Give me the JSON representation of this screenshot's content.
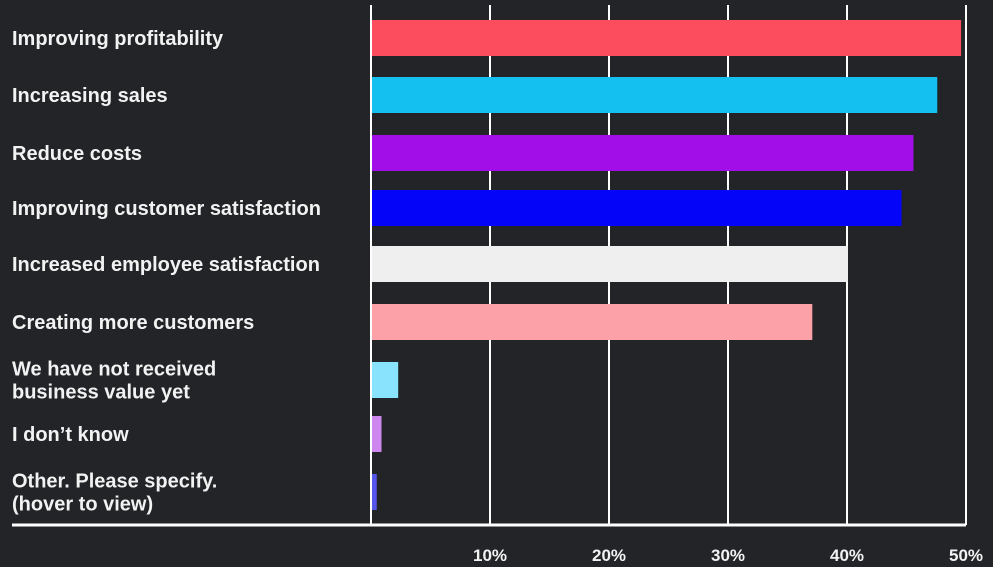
{
  "chart_data": {
    "type": "bar",
    "orientation": "horizontal",
    "title": "",
    "xlabel": "",
    "ylabel": "",
    "categories": [
      [
        "Improving profitability"
      ],
      [
        "Increasing sales"
      ],
      [
        "Reduce costs"
      ],
      [
        "Improving customer satisfaction"
      ],
      [
        "Increased employee satisfaction"
      ],
      [
        "Creating more customers"
      ],
      [
        "We have not received",
        "business value yet"
      ],
      [
        "I don’t know"
      ],
      [
        "Other. Please specify.",
        "(hover to view)"
      ]
    ],
    "values": [
      49.5,
      47.5,
      45.5,
      44.5,
      40,
      37,
      2.2,
      0.8,
      0.4
    ],
    "colors": [
      "#fc4d5f",
      "#13c0ef",
      "#a10ee8",
      "#0404f9",
      "#efefef",
      "#fda1a9",
      "#8ae3fd",
      "#cd87ee",
      "#5656ee"
    ],
    "xlim": [
      0,
      50
    ],
    "xticks": [
      10,
      20,
      30,
      40,
      50
    ],
    "xtick_labels": [
      "10%",
      "20%",
      "30%",
      "40%",
      "50%"
    ],
    "grid": true,
    "gridline_color": "#ffffff",
    "background_color": "#222428"
  }
}
